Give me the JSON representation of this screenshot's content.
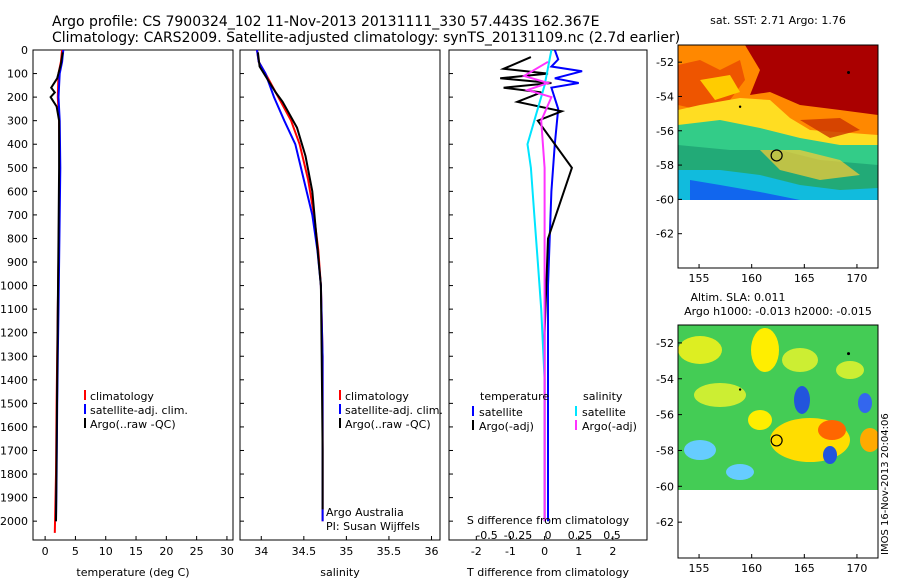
{
  "header": {
    "line1": "Argo profile: CS 7900324_102 11-Nov-2013 20131111_330 57.443S 162.367E",
    "line2": "Climatology: CARS2009. Satellite-adjusted climatology: synTS_20131109.nc (2.7d earlier)"
  },
  "colors": {
    "climatology": "#ff0000",
    "satellite": "#0000ff",
    "argo": "#000000",
    "sat_salinity": "#00e5ff",
    "argo_adj_salinity": "#ff33ff"
  },
  "chart_data": [
    {
      "type": "line",
      "xlabel": "temperature (deg C)",
      "ylabel": "",
      "xlim": [
        -2,
        31
      ],
      "ylim": [
        2080,
        0
      ],
      "xticks": [
        "0",
        "5",
        "10",
        "15",
        "20",
        "25",
        "30"
      ],
      "yticks": [
        "0",
        "100",
        "200",
        "300",
        "400",
        "500",
        "600",
        "700",
        "800",
        "900",
        "1000",
        "1100",
        "1200",
        "1300",
        "1400",
        "1500",
        "1600",
        "1700",
        "1800",
        "1900",
        "2000"
      ],
      "legend": [
        "climatology",
        "satellite-adj. clim.",
        "Argo(..raw -QC)"
      ],
      "series": [
        {
          "name": "climatology",
          "x": [
            2.8,
            2.6,
            2.2,
            2.1,
            2.3,
            2.4,
            2.3,
            2.2,
            2.1,
            2.0,
            1.9,
            1.8,
            1.6
          ],
          "y": [
            0,
            50,
            100,
            200,
            300,
            500,
            700,
            900,
            1100,
            1300,
            1500,
            1800,
            2050
          ]
        },
        {
          "name": "satellite-adj. clim.",
          "x": [
            3.0,
            2.8,
            2.4,
            2.2,
            2.4,
            2.5,
            2.4,
            2.3,
            2.2,
            2.1,
            2.0,
            1.9,
            1.8
          ],
          "y": [
            0,
            50,
            100,
            200,
            300,
            500,
            700,
            900,
            1100,
            1300,
            1500,
            1800,
            2000
          ]
        },
        {
          "name": "Argo(..raw -QC)",
          "x": [
            2.9,
            2.6,
            2.0,
            1.0,
            1.6,
            0.9,
            1.9,
            2.3,
            2.3,
            2.2,
            2.1,
            2.0,
            1.9,
            1.8
          ],
          "y": [
            10,
            60,
            120,
            160,
            180,
            200,
            240,
            300,
            500,
            800,
            1100,
            1400,
            1700,
            2000
          ]
        }
      ]
    },
    {
      "type": "line",
      "xlabel": "salinity",
      "xlim": [
        33.75,
        36.1
      ],
      "ylim": [
        2080,
        0
      ],
      "xticks": [
        "34",
        "34.5",
        "35",
        "35.5",
        "36"
      ],
      "legend": [
        "climatology",
        "satellite-adj. clim.",
        "Argo(..raw -QC)"
      ],
      "annotations": [
        "Argo Australia",
        "PI: Susan Wijffels"
      ],
      "series": [
        {
          "name": "climatology",
          "x": [
            33.95,
            33.97,
            34.05,
            34.2,
            34.35,
            34.45,
            34.55,
            34.62,
            34.67,
            34.7,
            34.72,
            34.72,
            34.72
          ],
          "y": [
            0,
            50,
            100,
            200,
            300,
            400,
            550,
            700,
            850,
            1000,
            1300,
            1700,
            2000
          ]
        },
        {
          "name": "satellite-adj. clim.",
          "x": [
            33.95,
            33.97,
            34.05,
            34.15,
            34.27,
            34.4,
            34.5,
            34.6,
            34.66,
            34.7,
            34.72,
            34.72,
            34.72
          ],
          "y": [
            0,
            50,
            100,
            200,
            300,
            400,
            550,
            700,
            850,
            1000,
            1300,
            1700,
            2000
          ]
        },
        {
          "name": "Argo(..raw -QC)",
          "x": [
            33.96,
            33.98,
            34.1,
            34.17,
            34.25,
            34.42,
            34.52,
            34.6,
            34.65,
            34.7,
            34.71,
            34.72,
            34.72
          ],
          "y": [
            10,
            70,
            140,
            180,
            220,
            330,
            450,
            600,
            800,
            1000,
            1300,
            1700,
            1950
          ]
        }
      ]
    },
    {
      "type": "line",
      "xlabel": "T difference from climatology",
      "xlabel_top": "S difference from climatology",
      "xlim": [
        -2.8,
        3
      ],
      "ylim": [
        2080,
        0
      ],
      "xticks": [
        "-2",
        "-1",
        "0",
        "1",
        "2"
      ],
      "xticks_top": [
        "-0.5",
        "-0.25",
        "0",
        "0.25",
        "0.5"
      ],
      "legend": {
        "temperature": [
          "satellite",
          "Argo(-adj)"
        ],
        "salinity": [
          "satellite",
          "Argo(-adj)"
        ]
      },
      "series": [
        {
          "name": "temperature satellite",
          "x": [
            0.3,
            0.4,
            0.2,
            1.1,
            0.3,
            1.0,
            0.2,
            0.4,
            0.3,
            0.2,
            0.1,
            0.1,
            0.1,
            0.1
          ],
          "y": [
            0,
            40,
            70,
            90,
            120,
            140,
            160,
            250,
            400,
            600,
            1000,
            1400,
            1800,
            2000
          ]
        },
        {
          "name": "temperature Argo(-adj)",
          "x": [
            -0.4,
            -1.2,
            0.1,
            -1.3,
            0.2,
            -1.2,
            -0.1,
            -0.8,
            0.5,
            -0.2,
            0.8,
            0.1,
            0.0,
            0.0,
            0.0
          ],
          "y": [
            30,
            80,
            100,
            120,
            140,
            160,
            180,
            220,
            260,
            300,
            500,
            800,
            1200,
            1600,
            2000
          ]
        },
        {
          "name": "salinity satellite",
          "x": [
            0.2,
            0.0,
            -0.3,
            -0.5,
            -0.4,
            -0.3,
            -0.2,
            -0.1,
            0.0,
            0.0,
            0.0
          ],
          "y": [
            0,
            150,
            300,
            400,
            500,
            700,
            900,
            1100,
            1400,
            1700,
            2000
          ]
        },
        {
          "name": "salinity Argo(-adj)",
          "x": [
            0.1,
            -0.6,
            0.1,
            -0.5,
            0.2,
            -0.1,
            0.0,
            0.0,
            0.0,
            0.0
          ],
          "y": [
            50,
            110,
            140,
            170,
            200,
            300,
            500,
            900,
            1400,
            2000
          ]
        }
      ]
    },
    {
      "type": "heatmap",
      "title": "sat. SST: 2.71  Argo: 1.76",
      "xlim": [
        153,
        172
      ],
      "ylim": [
        -64,
        -51
      ],
      "xticks": [
        "155",
        "160",
        "165",
        "170"
      ],
      "yticks": [
        "-52",
        "-54",
        "-56",
        "-58",
        "-60",
        "-62"
      ],
      "argo_position": [
        162.37,
        -57.44
      ]
    },
    {
      "type": "heatmap",
      "title": "Altim. SLA: 0.011",
      "subtitle": "Argo h1000: -0.013 h2000: -0.015",
      "xlim": [
        153,
        172
      ],
      "ylim": [
        -64,
        -51
      ],
      "xticks": [
        "155",
        "160",
        "165",
        "170"
      ],
      "yticks": [
        "-52",
        "-54",
        "-56",
        "-58",
        "-60",
        "-62"
      ],
      "argo_position": [
        162.37,
        -57.44
      ]
    }
  ],
  "side_label": "IMOS 16-Nov-2013 20:04:06"
}
